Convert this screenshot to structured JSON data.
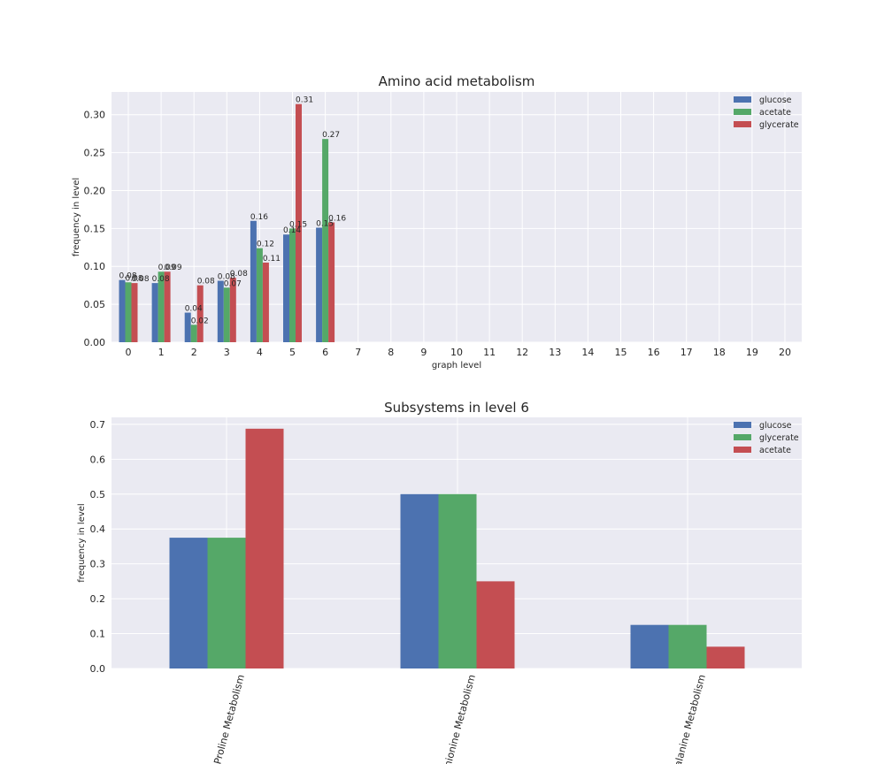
{
  "colors": {
    "glucose": "#4C72B0",
    "acetate": "#55A868",
    "glycerate": "#C44E52",
    "axes_bg": "#EAEAF2",
    "grid": "#FFFFFF"
  },
  "chart_data": [
    {
      "type": "bar",
      "title": "Amino acid metabolism",
      "xlabel": "graph level",
      "ylabel": "frequency in level",
      "ylim": [
        0,
        0.33
      ],
      "yticks": [
        0.0,
        0.05,
        0.1,
        0.15,
        0.2,
        0.25,
        0.3
      ],
      "ytick_labels": [
        "0.00",
        "0.05",
        "0.10",
        "0.15",
        "0.20",
        "0.25",
        "0.30"
      ],
      "categories": [
        "0",
        "1",
        "2",
        "3",
        "4",
        "5",
        "6",
        "7",
        "8",
        "9",
        "10",
        "11",
        "12",
        "13",
        "14",
        "15",
        "16",
        "17",
        "18",
        "19",
        "20"
      ],
      "legend_position": "top-right",
      "grid": true,
      "series": [
        {
          "name": "glucose",
          "color_key": "glucose",
          "values": [
            0.082,
            0.078,
            0.039,
            0.081,
            0.16,
            0.142,
            0.151,
            0,
            0,
            0,
            0,
            0,
            0,
            0,
            0,
            0,
            0,
            0,
            0,
            0,
            0
          ],
          "labels": [
            "0.08",
            "0.08",
            "0.04",
            "0.08",
            "0.16",
            "0.14",
            "0.15",
            "",
            "",
            "",
            "",
            "",
            "",
            "",
            "",
            "",
            "",
            "",
            "",
            "",
            ""
          ]
        },
        {
          "name": "acetate",
          "color_key": "acetate",
          "values": [
            0.079,
            0.093,
            0.023,
            0.072,
            0.124,
            0.15,
            0.268,
            0,
            0,
            0,
            0,
            0,
            0,
            0,
            0,
            0,
            0,
            0,
            0,
            0,
            0
          ],
          "labels": [
            "0.08",
            "0.09",
            "0.02",
            "0.07",
            "0.12",
            "0.15",
            "0.27",
            "",
            "",
            "",
            "",
            "",
            "",
            "",
            "",
            "",
            "",
            "",
            "",
            "",
            ""
          ]
        },
        {
          "name": "glycerate",
          "color_key": "glycerate",
          "values": [
            0.078,
            0.093,
            0.075,
            0.085,
            0.105,
            0.314,
            0.158,
            0,
            0,
            0,
            0,
            0,
            0,
            0,
            0,
            0,
            0,
            0,
            0,
            0,
            0
          ],
          "labels": [
            "0.08",
            "0.09",
            "0.08",
            "0.08",
            "0.11",
            "0.31",
            "0.16",
            "",
            "",
            "",
            "",
            "",
            "",
            "",
            "",
            "",
            "",
            "",
            "",
            "",
            ""
          ]
        }
      ]
    },
    {
      "type": "bar",
      "title": "Subsystems in level 6",
      "xlabel": "",
      "ylabel": "frequency in level",
      "ylim": [
        0,
        0.72
      ],
      "yticks": [
        0.0,
        0.1,
        0.2,
        0.3,
        0.4,
        0.5,
        0.6,
        0.7
      ],
      "ytick_labels": [
        "0.0",
        "0.1",
        "0.2",
        "0.3",
        "0.4",
        "0.5",
        "0.6",
        "0.7"
      ],
      "categories": [
        "Proline Metabolism",
        "hionine Metabolism",
        "alanine Metabolism"
      ],
      "legend_position": "top-right",
      "grid": true,
      "series": [
        {
          "name": "glucose",
          "color_key": "glucose",
          "values": [
            0.375,
            0.5,
            0.125
          ]
        },
        {
          "name": "glycerate",
          "color_key": "acetate",
          "values": [
            0.375,
            0.5,
            0.125
          ]
        },
        {
          "name": "acetate",
          "color_key": "glycerate",
          "values": [
            0.6875,
            0.25,
            0.0625
          ]
        }
      ]
    }
  ]
}
